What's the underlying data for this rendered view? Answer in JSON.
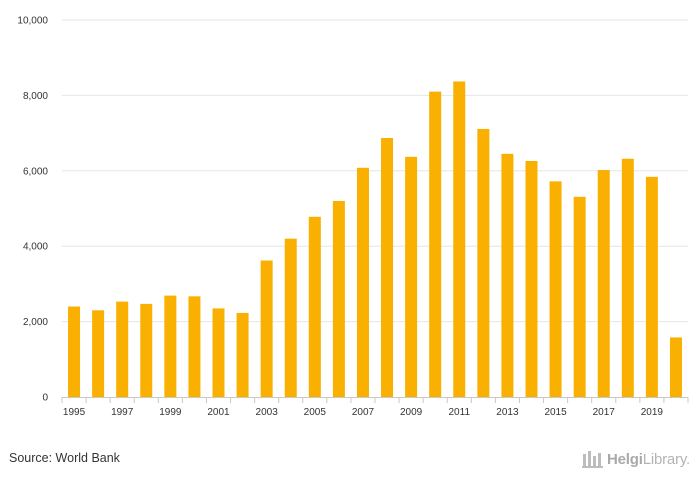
{
  "chart_data": {
    "type": "bar",
    "title": "",
    "xlabel": "",
    "ylabel": "",
    "categories": [
      "1995",
      "1996",
      "1997",
      "1998",
      "1999",
      "2000",
      "2001",
      "2002",
      "2003",
      "2004",
      "2005",
      "2006",
      "2007",
      "2008",
      "2009",
      "2010",
      "2011",
      "2012",
      "2013",
      "2014",
      "2015",
      "2016",
      "2017",
      "2018",
      "2019",
      "2020"
    ],
    "x_tick_labels": [
      "1995",
      "1997",
      "1999",
      "2001",
      "2003",
      "2005",
      "2007",
      "2009",
      "2011",
      "2013",
      "2015",
      "2017",
      "2019"
    ],
    "values": [
      2400,
      2300,
      2530,
      2470,
      2690,
      2670,
      2350,
      2230,
      3620,
      4200,
      4780,
      5200,
      6080,
      6870,
      6370,
      8100,
      8370,
      7110,
      6450,
      6260,
      5720,
      5310,
      6020,
      6320,
      5840,
      1580
    ],
    "ylim": [
      0,
      10000
    ],
    "y_ticks": [
      0,
      2000,
      4000,
      6000,
      8000,
      10000
    ],
    "y_tick_labels": [
      "0",
      "2,000",
      "4,000",
      "6,000",
      "8,000",
      "10,000"
    ],
    "grid": true,
    "bar_color": "#f9b000",
    "grid_color": "#e6e6e6",
    "legend": "none"
  },
  "footer": {
    "source": "Source: World Bank",
    "logo_bold": "Helgi",
    "logo_light": "Library."
  }
}
